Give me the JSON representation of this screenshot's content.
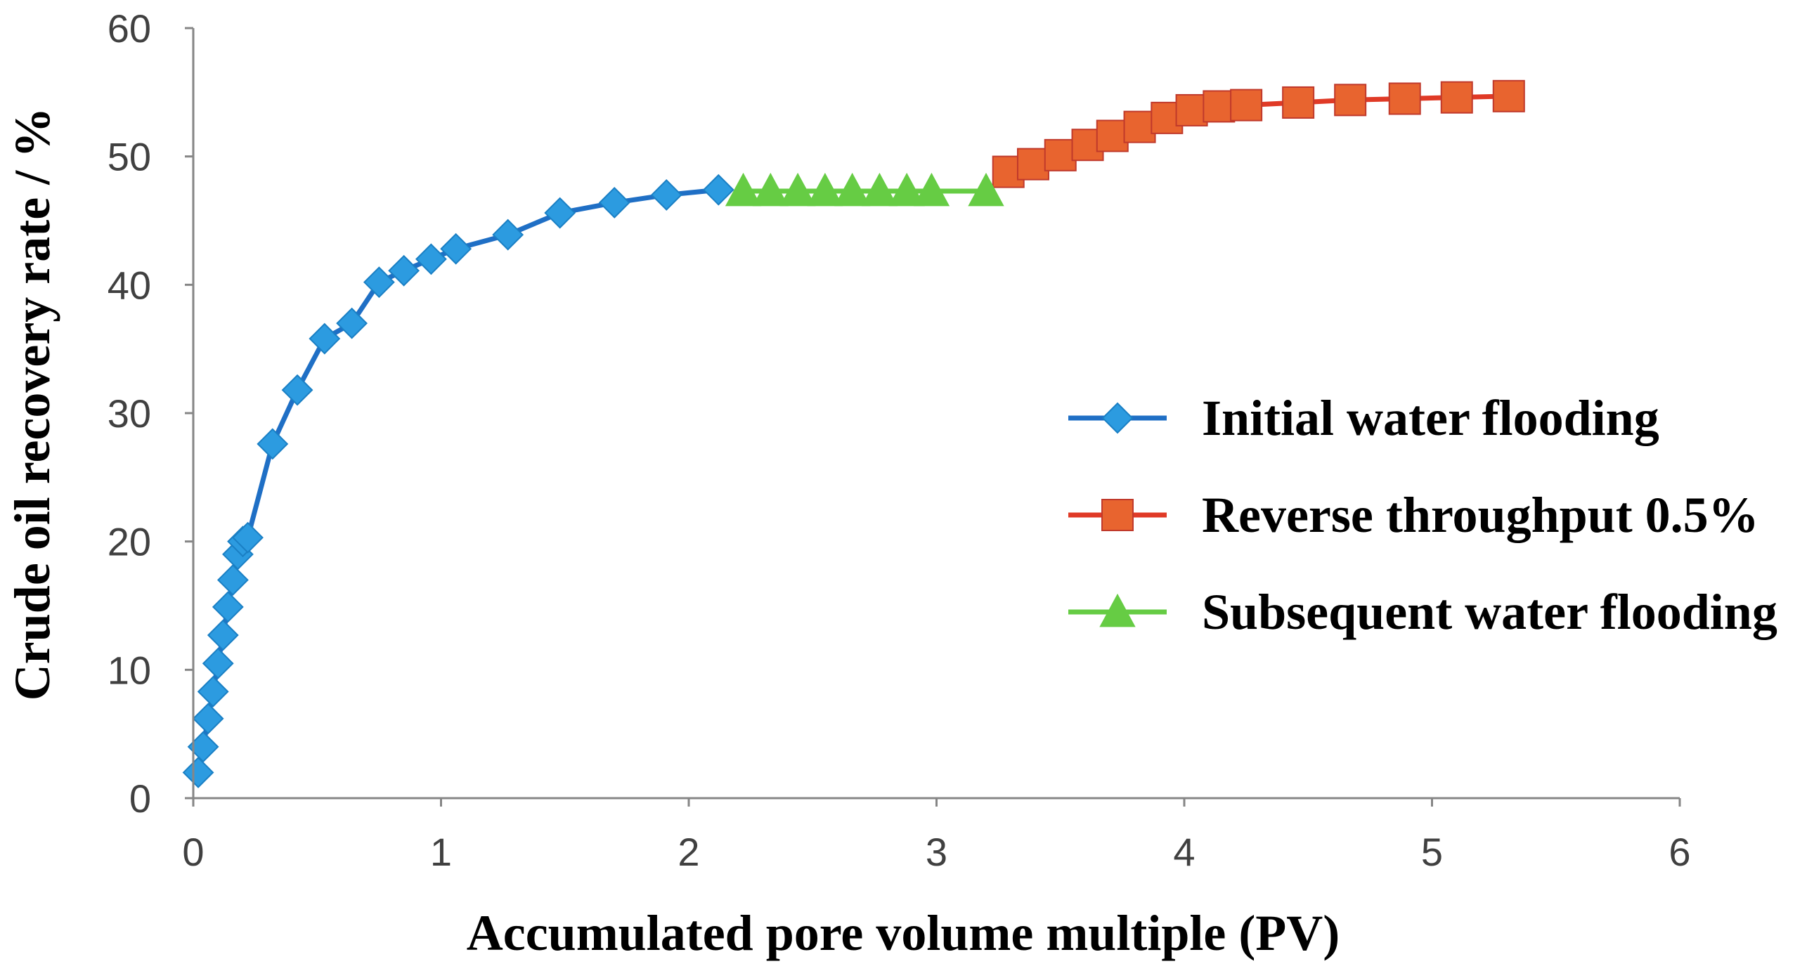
{
  "chart_data": {
    "type": "line",
    "title": "",
    "xlabel": "Accumulated pore volume multiple (PV)",
    "ylabel": "Crude oil recovery rate / %",
    "xlim": [
      0,
      6
    ],
    "ylim": [
      0,
      60
    ],
    "xticks": [
      0,
      1,
      2,
      3,
      4,
      5,
      6
    ],
    "yticks": [
      0,
      10,
      20,
      30,
      40,
      50,
      60
    ],
    "grid": false,
    "legend_position": "center-right",
    "series": [
      {
        "name": "Initial water flooding",
        "color": "#1f6fc5",
        "marker_color": "#2c9be0",
        "marker": "diamond",
        "x": [
          0.02,
          0.04,
          0.06,
          0.08,
          0.1,
          0.12,
          0.14,
          0.16,
          0.18,
          0.2,
          0.22,
          0.32,
          0.42,
          0.53,
          0.64,
          0.75,
          0.85,
          0.96,
          1.06,
          1.27,
          1.48,
          1.7,
          1.91,
          2.12
        ],
        "y": [
          2.0,
          4.0,
          6.2,
          8.3,
          10.5,
          12.7,
          14.9,
          17.0,
          19.0,
          20.0,
          20.3,
          27.6,
          31.8,
          35.8,
          37.0,
          40.2,
          41.1,
          42.0,
          42.8,
          43.9,
          45.6,
          46.4,
          47.0,
          47.4
        ]
      },
      {
        "name": "Subsequent water flooding",
        "color": "#66cc44",
        "marker_color": "#66cc44",
        "marker": "triangle",
        "x": [
          2.22,
          2.33,
          2.44,
          2.55,
          2.66,
          2.77,
          2.88,
          2.98,
          3.2
        ],
        "y": [
          47.3,
          47.3,
          47.3,
          47.3,
          47.3,
          47.3,
          47.3,
          47.3,
          47.3
        ]
      },
      {
        "name": "Reverse throughput 0.5%",
        "color": "#e03a26",
        "marker_color": "#e8642f",
        "marker": "square",
        "x": [
          3.29,
          3.39,
          3.5,
          3.61,
          3.71,
          3.82,
          3.93,
          4.03,
          4.14,
          4.25,
          4.46,
          4.67,
          4.89,
          5.1,
          5.31
        ],
        "y": [
          48.8,
          49.4,
          50.1,
          50.9,
          51.6,
          52.3,
          53.0,
          53.6,
          53.9,
          54.0,
          54.2,
          54.4,
          54.5,
          54.6,
          54.7
        ]
      }
    ],
    "legend_order": [
      0,
      2,
      1
    ]
  }
}
